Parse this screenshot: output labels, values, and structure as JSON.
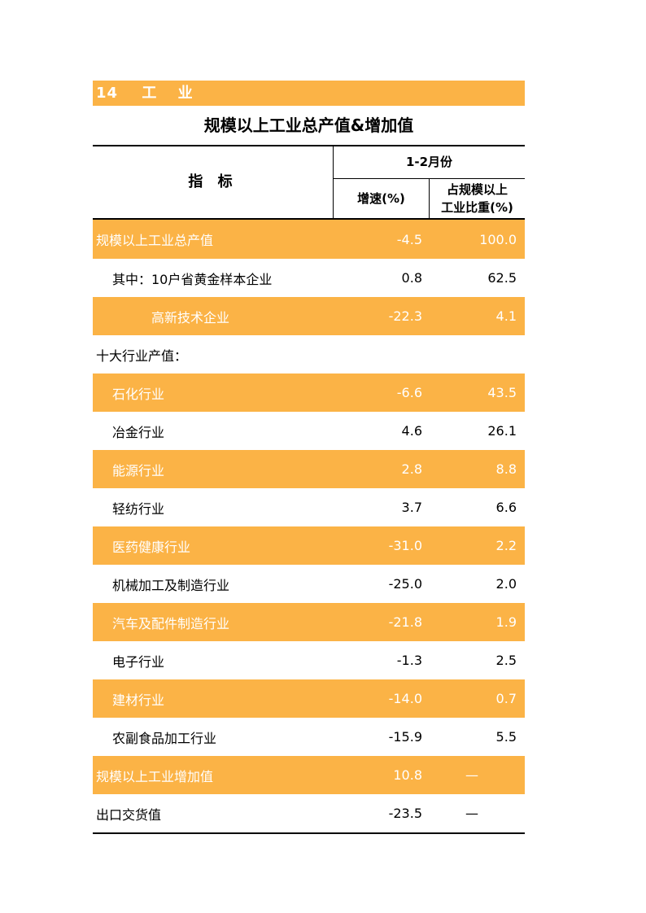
{
  "section": {
    "number": "14",
    "word1": "工",
    "word2": "业"
  },
  "table_title": "规模以上工业总产值&增加值",
  "header": {
    "indicator": "指 标",
    "period": "1-2月份",
    "col_growth": "增速(%)",
    "col_share_line1": "占规模以上",
    "col_share_line2": "工业比重(%)"
  },
  "rows": [
    {
      "label": "规模以上工业总产值",
      "growth": "-4.5",
      "share": "100.0"
    },
    {
      "label": "其中：10户省黄金样本企业",
      "growth": "0.8",
      "share": "62.5"
    },
    {
      "label": "高新技术企业",
      "growth": "-22.3",
      "share": "4.1"
    },
    {
      "label": "十大行业产值：",
      "growth": "",
      "share": ""
    },
    {
      "label": "石化行业",
      "growth": "-6.6",
      "share": "43.5"
    },
    {
      "label": "冶金行业",
      "growth": "4.6",
      "share": "26.1"
    },
    {
      "label": "能源行业",
      "growth": "2.8",
      "share": "8.8"
    },
    {
      "label": "轻纺行业",
      "growth": "3.7",
      "share": "6.6"
    },
    {
      "label": "医药健康行业",
      "growth": "-31.0",
      "share": "2.2"
    },
    {
      "label": "机械加工及制造行业",
      "growth": "-25.0",
      "share": "2.0"
    },
    {
      "label": "汽车及配件制造行业",
      "growth": "-21.8",
      "share": "1.9"
    },
    {
      "label": "电子行业",
      "growth": "-1.3",
      "share": "2.5"
    },
    {
      "label": "建材行业",
      "growth": "-14.0",
      "share": "0.7"
    },
    {
      "label": "农副食品加工行业",
      "growth": "-15.9",
      "share": "5.5"
    },
    {
      "label": "规模以上工业增加值",
      "growth": "10.8",
      "share": "—"
    },
    {
      "label": "出口交货值",
      "growth": "-23.5",
      "share": "—"
    }
  ],
  "colors": {
    "highlight": "#fbb346",
    "highlight_text": "#ffffff",
    "rule": "#000000"
  }
}
